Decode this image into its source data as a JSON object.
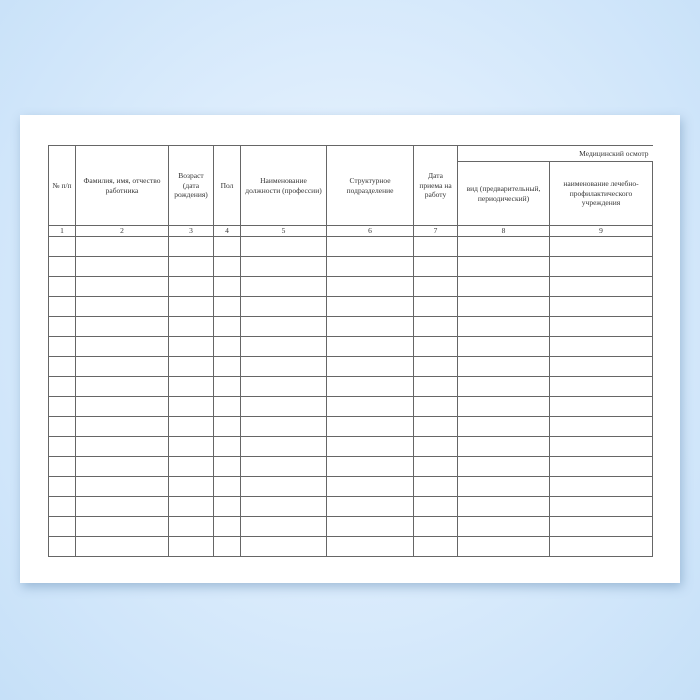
{
  "table": {
    "headers": {
      "c1": "№ п/п",
      "c2": "Фамилия, имя, отчество работника",
      "c3": "Возраст (дата рождения)",
      "c4": "Пол",
      "c5": "Наименование должности (профессии)",
      "c6": "Структурное подразделение",
      "c7": "Дата приема на работу",
      "group": "Медицинский осмотр",
      "c8": "вид (предварительный, периодический)",
      "c9": "наименование лечебно-профилактического учреждения"
    },
    "column_numbers": [
      "1",
      "2",
      "3",
      "4",
      "5",
      "6",
      "7",
      "8",
      "9"
    ],
    "empty_row_count": 16
  }
}
